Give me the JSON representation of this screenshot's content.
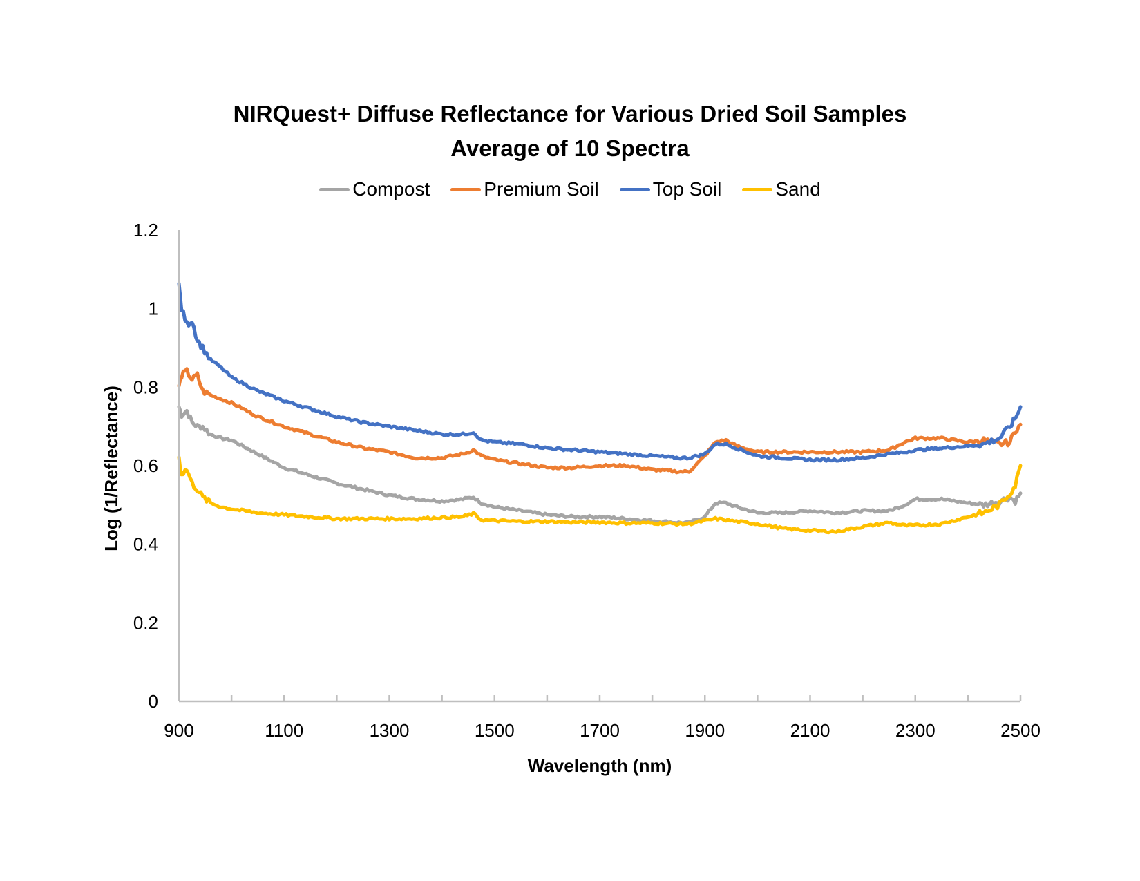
{
  "chart_data": {
    "type": "line",
    "title": "NIRQuest+ Diffuse Reflectance for Various Dried Soil Samples",
    "subtitle": "Average of 10 Spectra",
    "xlabel": "Wavelength (nm)",
    "ylabel": "Log (1/Reflectance)",
    "xlim": [
      900,
      2500
    ],
    "ylim": [
      0,
      1.2
    ],
    "x_ticks": [
      900,
      1100,
      1300,
      1500,
      1700,
      1900,
      2100,
      2300,
      2500
    ],
    "x_tick_labels": [
      "900",
      "1100",
      "1300",
      "1500",
      "1700",
      "1900",
      "2100",
      "2300",
      "2500"
    ],
    "x_minor_tick_step": 100,
    "y_ticks": [
      0,
      0.2,
      0.4,
      0.6,
      0.8,
      1.0,
      1.2
    ],
    "y_tick_labels": [
      "0",
      "0.2",
      "0.4",
      "0.6",
      "0.8",
      "1",
      "1.2"
    ],
    "grid": false,
    "legend_position": "top-center",
    "x": [
      900,
      905,
      915,
      925,
      935,
      945,
      960,
      980,
      1000,
      1050,
      1100,
      1150,
      1200,
      1250,
      1300,
      1350,
      1400,
      1440,
      1460,
      1475,
      1500,
      1550,
      1600,
      1650,
      1700,
      1750,
      1800,
      1850,
      1870,
      1900,
      1920,
      1940,
      1960,
      2000,
      2050,
      2100,
      2150,
      2200,
      2250,
      2280,
      2300,
      2350,
      2400,
      2430,
      2460,
      2480,
      2490,
      2500
    ],
    "series": [
      {
        "name": "Compost",
        "color": "#A5A5A5",
        "values": [
          0.75,
          0.73,
          0.74,
          0.71,
          0.7,
          0.7,
          0.68,
          0.67,
          0.665,
          0.63,
          0.595,
          0.575,
          0.555,
          0.54,
          0.525,
          0.515,
          0.51,
          0.515,
          0.52,
          0.505,
          0.495,
          0.485,
          0.475,
          0.47,
          0.47,
          0.465,
          0.46,
          0.455,
          0.455,
          0.47,
          0.505,
          0.505,
          0.495,
          0.48,
          0.48,
          0.485,
          0.48,
          0.485,
          0.485,
          0.5,
          0.515,
          0.515,
          0.505,
          0.5,
          0.51,
          0.52,
          0.51,
          0.53
        ]
      },
      {
        "name": "Premium Soil",
        "color": "#ED7D31",
        "values": [
          0.8,
          0.83,
          0.84,
          0.82,
          0.83,
          0.79,
          0.78,
          0.77,
          0.76,
          0.725,
          0.7,
          0.68,
          0.66,
          0.645,
          0.635,
          0.62,
          0.62,
          0.63,
          0.64,
          0.625,
          0.615,
          0.605,
          0.595,
          0.595,
          0.6,
          0.6,
          0.59,
          0.585,
          0.585,
          0.625,
          0.66,
          0.665,
          0.65,
          0.635,
          0.635,
          0.635,
          0.635,
          0.635,
          0.64,
          0.66,
          0.67,
          0.67,
          0.66,
          0.665,
          0.655,
          0.66,
          0.69,
          0.705
        ]
      },
      {
        "name": "Top Soil",
        "color": "#4472C4",
        "values": [
          1.06,
          1.0,
          0.96,
          0.97,
          0.92,
          0.9,
          0.87,
          0.85,
          0.825,
          0.79,
          0.765,
          0.745,
          0.725,
          0.71,
          0.7,
          0.69,
          0.68,
          0.68,
          0.685,
          0.665,
          0.66,
          0.655,
          0.645,
          0.64,
          0.635,
          0.63,
          0.625,
          0.62,
          0.62,
          0.63,
          0.655,
          0.655,
          0.645,
          0.625,
          0.62,
          0.615,
          0.615,
          0.62,
          0.63,
          0.635,
          0.64,
          0.645,
          0.65,
          0.655,
          0.67,
          0.7,
          0.72,
          0.75
        ]
      },
      {
        "name": "Sand",
        "color": "#FFC000",
        "values": [
          0.62,
          0.58,
          0.59,
          0.555,
          0.54,
          0.52,
          0.505,
          0.495,
          0.49,
          0.48,
          0.475,
          0.47,
          0.465,
          0.465,
          0.465,
          0.465,
          0.468,
          0.47,
          0.478,
          0.462,
          0.46,
          0.458,
          0.458,
          0.456,
          0.456,
          0.454,
          0.454,
          0.452,
          0.452,
          0.46,
          0.465,
          0.462,
          0.458,
          0.452,
          0.44,
          0.435,
          0.432,
          0.445,
          0.455,
          0.448,
          0.448,
          0.452,
          0.47,
          0.48,
          0.5,
          0.53,
          0.55,
          0.6
        ]
      }
    ]
  },
  "legend": {
    "items": [
      {
        "label": "Compost",
        "color": "#A5A5A5"
      },
      {
        "label": "Premium Soil",
        "color": "#ED7D31"
      },
      {
        "label": "Top Soil",
        "color": "#4472C4"
      },
      {
        "label": "Sand",
        "color": "#FFC000"
      }
    ]
  },
  "colors": {
    "axis": "#BFBFBF"
  }
}
